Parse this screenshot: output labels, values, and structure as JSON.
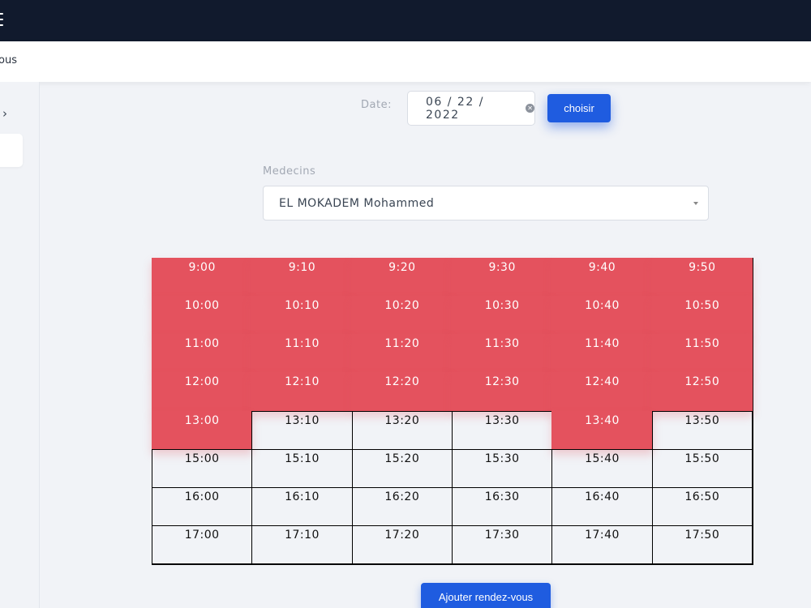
{
  "topbar": {
    "menu_icon": "hamburger-icon"
  },
  "subbar": {
    "crumb": "ous"
  },
  "sidebar": {
    "chevron_icon": "chevron-right-icon",
    "chevron": "›"
  },
  "date": {
    "label": "Date:",
    "value": "06 / 22 / 2022",
    "clear_icon": "clear-circle-icon",
    "clear": "✕"
  },
  "choisir_label": "choisir",
  "medecins": {
    "label": "Medecins",
    "selected": "EL MOKADEM Mohammed"
  },
  "colors": {
    "booked": "#e4525e",
    "accent": "#1f5ce0"
  },
  "slots": [
    {
      "time": "9:00",
      "booked": true
    },
    {
      "time": "9:10",
      "booked": true
    },
    {
      "time": "9:20",
      "booked": true
    },
    {
      "time": "9:30",
      "booked": true
    },
    {
      "time": "9:40",
      "booked": true
    },
    {
      "time": "9:50",
      "booked": true
    },
    {
      "time": "10:00",
      "booked": true
    },
    {
      "time": "10:10",
      "booked": true
    },
    {
      "time": "10:20",
      "booked": true
    },
    {
      "time": "10:30",
      "booked": true
    },
    {
      "time": "10:40",
      "booked": true
    },
    {
      "time": "10:50",
      "booked": true
    },
    {
      "time": "11:00",
      "booked": true
    },
    {
      "time": "11:10",
      "booked": true
    },
    {
      "time": "11:20",
      "booked": true
    },
    {
      "time": "11:30",
      "booked": true
    },
    {
      "time": "11:40",
      "booked": true
    },
    {
      "time": "11:50",
      "booked": true
    },
    {
      "time": "12:00",
      "booked": true
    },
    {
      "time": "12:10",
      "booked": true
    },
    {
      "time": "12:20",
      "booked": true
    },
    {
      "time": "12:30",
      "booked": true
    },
    {
      "time": "12:40",
      "booked": true
    },
    {
      "time": "12:50",
      "booked": true
    },
    {
      "time": "13:00",
      "booked": true
    },
    {
      "time": "13:10",
      "booked": false
    },
    {
      "time": "13:20",
      "booked": false
    },
    {
      "time": "13:30",
      "booked": false
    },
    {
      "time": "13:40",
      "booked": true
    },
    {
      "time": "13:50",
      "booked": false
    },
    {
      "time": "15:00",
      "booked": false
    },
    {
      "time": "15:10",
      "booked": false
    },
    {
      "time": "15:20",
      "booked": false
    },
    {
      "time": "15:30",
      "booked": false
    },
    {
      "time": "15:40",
      "booked": false
    },
    {
      "time": "15:50",
      "booked": false
    },
    {
      "time": "16:00",
      "booked": false
    },
    {
      "time": "16:10",
      "booked": false
    },
    {
      "time": "16:20",
      "booked": false
    },
    {
      "time": "16:30",
      "booked": false
    },
    {
      "time": "16:40",
      "booked": false
    },
    {
      "time": "16:50",
      "booked": false
    },
    {
      "time": "17:00",
      "booked": false
    },
    {
      "time": "17:10",
      "booked": false
    },
    {
      "time": "17:20",
      "booked": false
    },
    {
      "time": "17:30",
      "booked": false
    },
    {
      "time": "17:40",
      "booked": false
    },
    {
      "time": "17:50",
      "booked": false
    }
  ],
  "add_label": "Ajouter rendez-vous"
}
